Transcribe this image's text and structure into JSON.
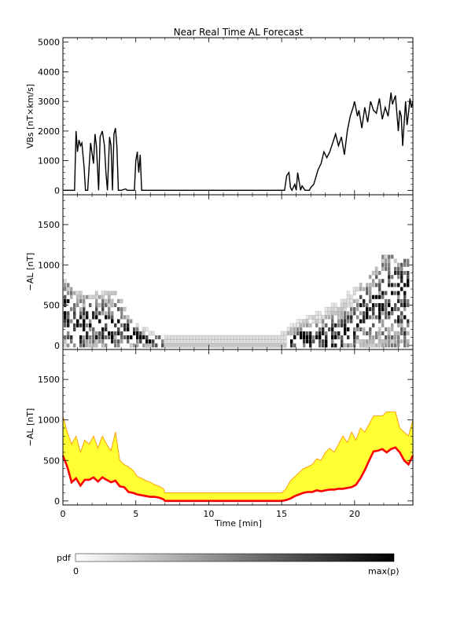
{
  "title": "Near Real Time AL Forecast",
  "panels": [
    {
      "ylabel": "VBs [nT×km/s]",
      "yticks": [
        "0",
        "1000",
        "2000",
        "3000",
        "4000",
        "5000"
      ],
      "ylim": [
        -150,
        5150
      ]
    },
    {
      "ylabel": "−AL [nT]",
      "yticks": [
        "0",
        "500",
        "1000",
        "1500"
      ],
      "ylim": [
        -50,
        1870
      ]
    },
    {
      "ylabel": "−AL [nT]",
      "yticks": [
        "0",
        "500",
        "1000",
        "1500"
      ],
      "ylim": [
        -50,
        1870
      ]
    }
  ],
  "xaxis": {
    "label": "Time [min]",
    "ticks": [
      "0",
      "5",
      "10",
      "15",
      "20"
    ],
    "xlim": [
      0,
      24
    ]
  },
  "colorbar": {
    "label": "pdf",
    "min_label": "0",
    "max_label": "max(p)"
  },
  "colors": {
    "line": "#000000",
    "forecast": "#ff0000",
    "band": "#ffff33",
    "band_edge": "#ff9900"
  },
  "chart_data": [
    {
      "type": "line",
      "ylabel": "VBs [nT×km/s]",
      "x": [
        0,
        0.8,
        0.9,
        1.0,
        1.1,
        1.2,
        1.3,
        1.45,
        1.55,
        1.7,
        1.9,
        2.1,
        2.2,
        2.3,
        2.45,
        2.55,
        2.7,
        2.85,
        2.95,
        3.05,
        3.2,
        3.3,
        3.4,
        3.5,
        3.6,
        3.7,
        3.8,
        4.0,
        4.3,
        4.4,
        4.5,
        4.9,
        5.0,
        5.1,
        5.2,
        5.3,
        5.4,
        5.6,
        15.2,
        15.35,
        15.5,
        15.6,
        15.7,
        15.9,
        16.0,
        16.1,
        16.3,
        16.4,
        16.6,
        16.7,
        16.9,
        17.0,
        17.2,
        17.5,
        17.7,
        17.9,
        18.1,
        18.3,
        18.5,
        18.7,
        18.9,
        19.1,
        19.3,
        19.5,
        19.7,
        19.9,
        20.0,
        20.2,
        20.3,
        20.5,
        20.7,
        20.9,
        21.1,
        21.3,
        21.5,
        21.7,
        21.9,
        22.1,
        22.3,
        22.5,
        22.6,
        22.8,
        23.0,
        23.1,
        23.2,
        23.3,
        23.5,
        23.6,
        23.7,
        23.8,
        23.9,
        24.0
      ],
      "values": [
        0,
        0,
        2000,
        1300,
        1700,
        1500,
        1600,
        800,
        0,
        0,
        1600,
        900,
        1900,
        1500,
        0,
        1800,
        2000,
        1500,
        600,
        0,
        1800,
        1500,
        0,
        1900,
        2100,
        1500,
        0,
        0,
        50,
        0,
        0,
        0,
        1000,
        1300,
        600,
        1200,
        0,
        0,
        0,
        500,
        600,
        100,
        0,
        200,
        0,
        600,
        0,
        150,
        0,
        0,
        0,
        100,
        200,
        700,
        900,
        1300,
        1100,
        1300,
        1600,
        1900,
        1500,
        1800,
        1200,
        2000,
        2500,
        2800,
        3000,
        2500,
        2700,
        2100,
        2800,
        2300,
        3000,
        2700,
        2600,
        3100,
        2400,
        2800,
        2500,
        3300,
        2900,
        3200,
        2000,
        2700,
        2500,
        1500,
        3000,
        2200,
        2600,
        3100,
        2800,
        3000
      ]
    },
    {
      "type": "heatmap",
      "ylabel": "−AL [nT]",
      "x": [
        0.2,
        0.7,
        1.2,
        1.7,
        2.2,
        2.7,
        3.2,
        3.7,
        4.2,
        4.7,
        5.2,
        5.7,
        6.2,
        6.7,
        7.5,
        9,
        11,
        13,
        14.5,
        15.3,
        15.8,
        16.3,
        16.8,
        17.3,
        17.8,
        18.3,
        18.8,
        19.3,
        19.8,
        20.3,
        20.8,
        21.3,
        21.8,
        22.3,
        22.8,
        23.3,
        23.8
      ],
      "al_center": [
        400,
        300,
        220,
        280,
        250,
        260,
        220,
        280,
        180,
        150,
        80,
        60,
        50,
        40,
        30,
        30,
        30,
        30,
        30,
        40,
        60,
        80,
        70,
        70,
        80,
        100,
        110,
        150,
        200,
        380,
        420,
        500,
        560,
        600,
        580,
        560,
        600
      ],
      "al_spread": [
        280,
        250,
        240,
        260,
        240,
        240,
        230,
        240,
        160,
        120,
        80,
        60,
        50,
        50,
        80,
        80,
        80,
        80,
        80,
        80,
        90,
        110,
        130,
        150,
        160,
        170,
        190,
        200,
        210,
        220,
        260,
        320,
        400,
        450,
        450,
        450,
        400
      ],
      "al_max": [
        800,
        700,
        650,
        600,
        650,
        700,
        650,
        650,
        450,
        300,
        250,
        200,
        150,
        100,
        100,
        100,
        100,
        100,
        100,
        200,
        300,
        350,
        400,
        450,
        500,
        550,
        600,
        650,
        700,
        750,
        850,
        950,
        1100,
        1100,
        1100,
        1100,
        1050
      ]
    },
    {
      "type": "area",
      "ylabel": "−AL [nT]",
      "x": [
        0,
        0.3,
        0.6,
        0.9,
        1.2,
        1.5,
        1.8,
        2.1,
        2.4,
        2.7,
        3.0,
        3.3,
        3.6,
        3.9,
        4.2,
        4.5,
        4.8,
        5.1,
        5.4,
        5.7,
        6.0,
        6.3,
        6.6,
        6.9,
        7.0,
        10,
        15.0,
        15.3,
        15.6,
        15.9,
        16.2,
        16.5,
        16.8,
        17.1,
        17.4,
        17.7,
        18.0,
        18.3,
        18.6,
        18.9,
        19.2,
        19.5,
        19.8,
        20.1,
        20.4,
        20.7,
        21.0,
        21.3,
        21.6,
        21.9,
        22.2,
        22.5,
        22.8,
        23.1,
        23.4,
        23.7,
        24.0
      ],
      "forecast": [
        560,
        420,
        230,
        280,
        190,
        260,
        260,
        290,
        240,
        290,
        260,
        230,
        250,
        180,
        170,
        110,
        100,
        80,
        70,
        60,
        50,
        50,
        40,
        20,
        0,
        0,
        0,
        10,
        30,
        60,
        80,
        100,
        110,
        110,
        130,
        120,
        130,
        140,
        140,
        150,
        150,
        160,
        170,
        200,
        280,
        380,
        500,
        610,
        620,
        640,
        600,
        640,
        660,
        600,
        500,
        450,
        560
      ],
      "band_low": [
        560,
        430,
        240,
        290,
        200,
        270,
        270,
        300,
        250,
        300,
        270,
        240,
        260,
        190,
        180,
        120,
        110,
        90,
        80,
        70,
        60,
        60,
        50,
        30,
        0,
        0,
        0,
        20,
        40,
        70,
        90,
        110,
        120,
        120,
        140,
        130,
        140,
        150,
        150,
        160,
        160,
        170,
        180,
        210,
        290,
        390,
        510,
        620,
        630,
        650,
        610,
        650,
        670,
        610,
        520,
        470,
        570
      ],
      "band_high": [
        1050,
        850,
        700,
        800,
        600,
        750,
        700,
        800,
        650,
        800,
        700,
        620,
        850,
        500,
        450,
        420,
        380,
        300,
        280,
        250,
        230,
        200,
        180,
        150,
        100,
        100,
        100,
        150,
        250,
        300,
        350,
        400,
        420,
        450,
        520,
        500,
        600,
        650,
        600,
        700,
        800,
        720,
        850,
        750,
        900,
        850,
        950,
        1050,
        1050,
        1050,
        1100,
        1100,
        1100,
        900,
        850,
        800,
        1000
      ]
    }
  ]
}
